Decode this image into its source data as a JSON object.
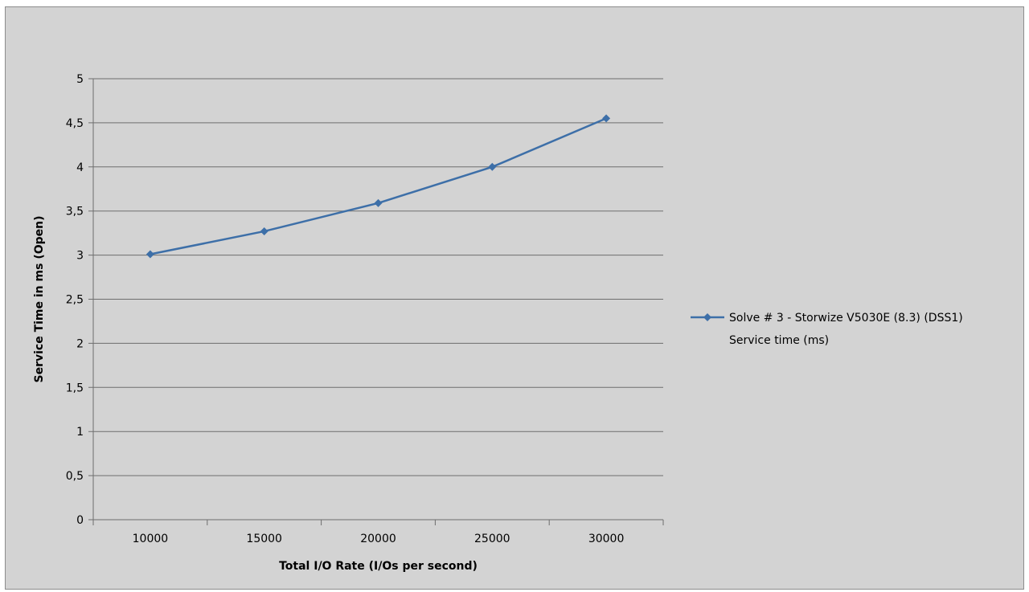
{
  "chart_data": {
    "type": "line",
    "xlabel": "Total I/O Rate (I/Os per second)",
    "ylabel": "Service Time in ms (Open)",
    "categories": [
      "10000",
      "15000",
      "20000",
      "25000",
      "30000"
    ],
    "yticks": [
      "0",
      "0,5",
      "1",
      "1,5",
      "2",
      "2,5",
      "3",
      "3,5",
      "4",
      "4,5",
      "5"
    ],
    "ylim": [
      0,
      5
    ],
    "grid": true,
    "legend_position": "right",
    "series": [
      {
        "name": "Solve # 3 - Storwize V5030E (8.3) (DSS1) Service time (ms)",
        "legend_lines": [
          "Solve # 3 - Storwize V5030E (8.3) (DSS1)",
          "Service time (ms)"
        ],
        "values": [
          3.01,
          3.27,
          3.59,
          4.0,
          4.55
        ],
        "color": "#3d6fa8"
      }
    ],
    "background": "#d3d3d3",
    "gridline_color": "#6e6e6e"
  }
}
